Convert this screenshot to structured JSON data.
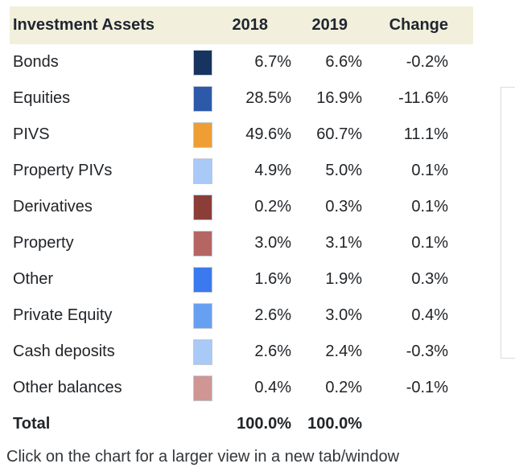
{
  "table": {
    "headers": {
      "asset": "Investment Assets",
      "y2018": "2018",
      "y2019": "2019",
      "change": "Change"
    },
    "rows": [
      {
        "name": "Bonds",
        "swatch": "#17335f",
        "y2018": "6.7%",
        "y2019": "6.6%",
        "change": "-0.2%"
      },
      {
        "name": "Equities",
        "swatch": "#2c5aa8",
        "y2018": "28.5%",
        "y2019": "16.9%",
        "change": "-11.6%"
      },
      {
        "name": "PIVS",
        "swatch": "#ef9e33",
        "y2018": "49.6%",
        "y2019": "60.7%",
        "change": "11.1%"
      },
      {
        "name": "Property PIVs",
        "swatch": "#a9c9f7",
        "y2018": "4.9%",
        "y2019": "5.0%",
        "change": "0.1%"
      },
      {
        "name": "Derivatives",
        "swatch": "#8b3e37",
        "y2018": "0.2%",
        "y2019": "0.3%",
        "change": "0.1%"
      },
      {
        "name": "Property",
        "swatch": "#b56662",
        "y2018": "3.0%",
        "y2019": "3.1%",
        "change": "0.1%"
      },
      {
        "name": "Other",
        "swatch": "#3b79ef",
        "y2018": "1.6%",
        "y2019": "1.9%",
        "change": "0.3%"
      },
      {
        "name": "Private Equity",
        "swatch": "#67a0f1",
        "y2018": "2.6%",
        "y2019": "3.0%",
        "change": "0.4%"
      },
      {
        "name": "Cash deposits",
        "swatch": "#a9c9f7",
        "y2018": "2.6%",
        "y2019": "2.4%",
        "change": "-0.3%"
      },
      {
        "name": "Other balances",
        "swatch": "#cf9694",
        "y2018": "0.4%",
        "y2019": "0.2%",
        "change": "-0.1%"
      }
    ],
    "total": {
      "label": "Total",
      "y2018": "100.0%",
      "y2019": "100.0%",
      "change": ""
    }
  },
  "footer": {
    "note": "Click on the chart for a larger view in a new tab/window"
  },
  "colors": {
    "header_bg": "#f2efdc",
    "header_text": "#1e2530",
    "row_text": "#212428",
    "panel_border": "#dcdcdc"
  },
  "chart_data": {
    "type": "table",
    "title": "Investment Assets",
    "categories": [
      "Bonds",
      "Equities",
      "PIVS",
      "Property PIVs",
      "Derivatives",
      "Property",
      "Other",
      "Private Equity",
      "Cash deposits",
      "Other balances"
    ],
    "series": [
      {
        "name": "2018",
        "values": [
          6.7,
          28.5,
          49.6,
          4.9,
          0.2,
          3.0,
          1.6,
          2.6,
          2.6,
          0.4
        ]
      },
      {
        "name": "2019",
        "values": [
          6.6,
          16.9,
          60.7,
          5.0,
          0.3,
          3.1,
          1.9,
          3.0,
          2.4,
          0.2
        ]
      },
      {
        "name": "Change",
        "values": [
          -0.2,
          -11.6,
          11.1,
          0.1,
          0.1,
          0.1,
          0.3,
          0.4,
          -0.3,
          -0.1
        ]
      }
    ],
    "totals": {
      "2018": 100.0,
      "2019": 100.0
    },
    "swatch_colors": [
      "#17335f",
      "#2c5aa8",
      "#ef9e33",
      "#a9c9f7",
      "#8b3e37",
      "#b56662",
      "#3b79ef",
      "#67a0f1",
      "#a9c9f7",
      "#cf9694"
    ],
    "legend_position": "inline-left",
    "grid": false
  }
}
